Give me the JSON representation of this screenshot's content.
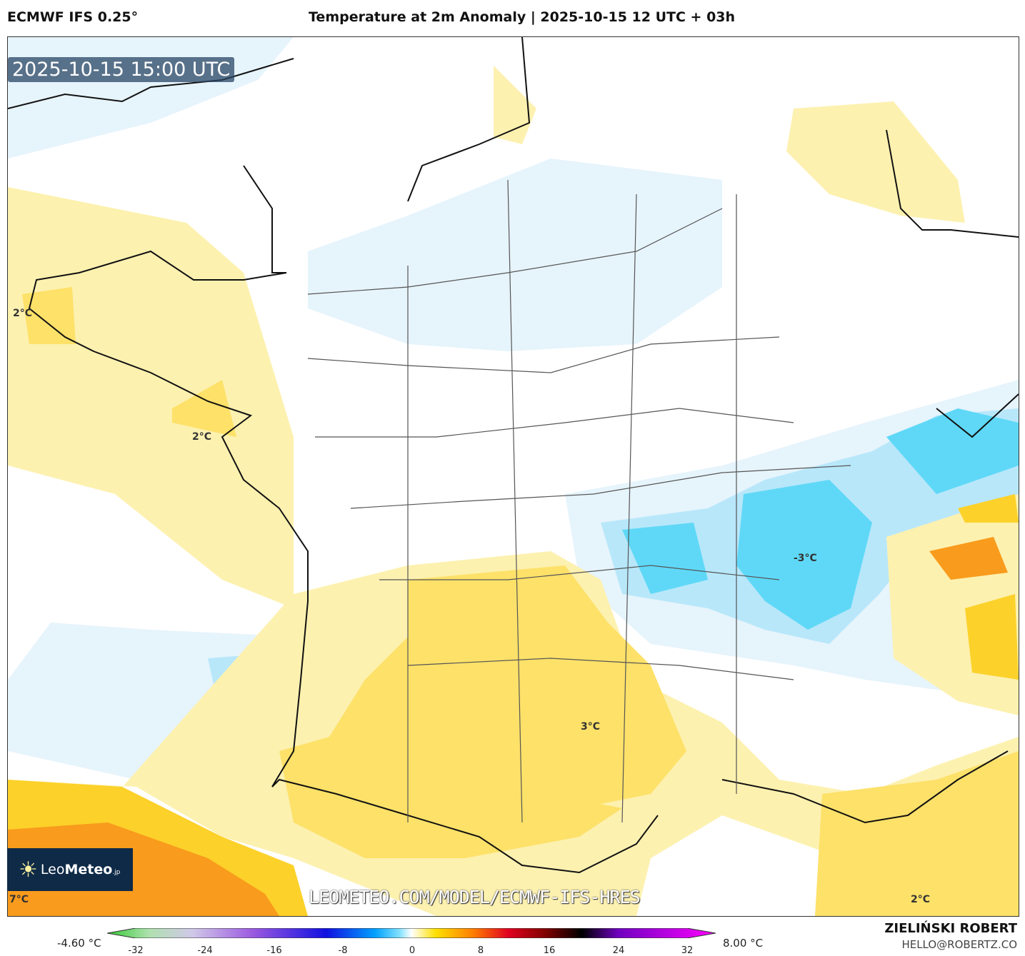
{
  "header": {
    "model": "ECMWF IFS 0.25°",
    "title": "Temperature at 2m Anomaly | 2025-10-15 12 UTC + 03h"
  },
  "map": {
    "valid_time": "2025-10-15 15:00 UTC",
    "url": "LEOMETEO.COM/MODEL/ECMWF-IFS-HRES",
    "labels": [
      "2°C",
      "2°C",
      "3°C",
      "-3°C",
      "2°C",
      "7°C"
    ]
  },
  "logo": {
    "leo": "Leo",
    "meteo": "Meteo",
    "suffix": ".jp"
  },
  "colorbar": {
    "min_label": "-4.60 °C",
    "max_label": "8.00 °C",
    "ticks": [
      "-32",
      "-24",
      "-16",
      "-8",
      "0",
      "8",
      "16",
      "24",
      "32"
    ],
    "colors": [
      "#33cc33",
      "#b0e0b0",
      "#d0c8e8",
      "#9b59e0",
      "#1010e0",
      "#00a0ff",
      "#80e0ff",
      "#ffffff",
      "#ffe000",
      "#ff8000",
      "#e00020",
      "#800000",
      "#000000",
      "#7000c0",
      "#ff00ff"
    ]
  },
  "credits": {
    "author": "ZIELIŃSKI ROBERT",
    "email": "HELLO@ROBERTZ.CO"
  },
  "palette": {
    "yellow_light": "#fdf1b0",
    "yellow": "#fde169",
    "gold": "#fcd12a",
    "orange": "#f99b1c",
    "blue_light": "#e6f4fc",
    "blue": "#b8e7fa",
    "cyan": "#5fd8f7"
  }
}
